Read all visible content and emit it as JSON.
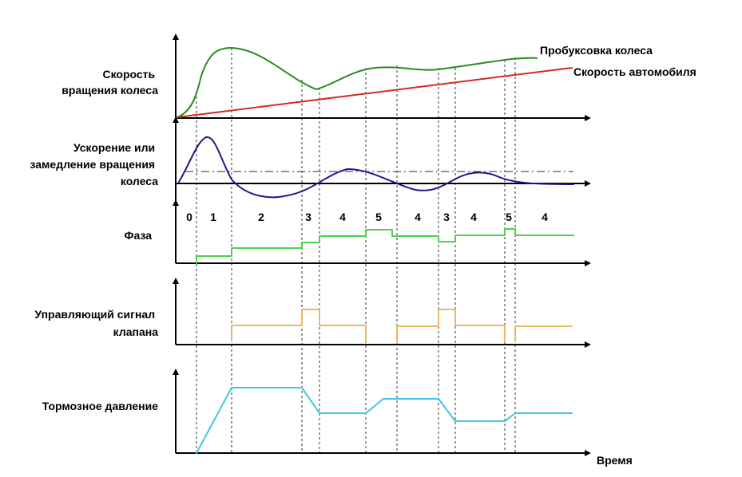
{
  "labels": {
    "wheel_speed": [
      "Скорость",
      "вращения колеса"
    ],
    "wheel_accel": [
      "Ускорение или",
      "замедление вращения",
      "колеса"
    ],
    "phase": [
      "Фаза"
    ],
    "valve_signal": [
      "Управляющий сигнал",
      "клапана"
    ],
    "brake_pressure": [
      "Тормозное давление"
    ],
    "wheel_slip": "Пробуксовка колеса",
    "vehicle_speed": "Скорость автомобиля",
    "time": "Время"
  },
  "phases": [
    "0",
    "1",
    "2",
    "3",
    "4",
    "5",
    "4",
    "3",
    "4",
    "5",
    "4"
  ],
  "colors": {
    "wheel_speed": "#2a8a1f",
    "vehicle_speed": "#d42a1e",
    "wheel_accel": "#1a1a8f",
    "phase": "#4ad44a",
    "valve_signal": "#f0b860",
    "brake_pressure": "#3cc8e0",
    "axis": "#000000"
  }
}
